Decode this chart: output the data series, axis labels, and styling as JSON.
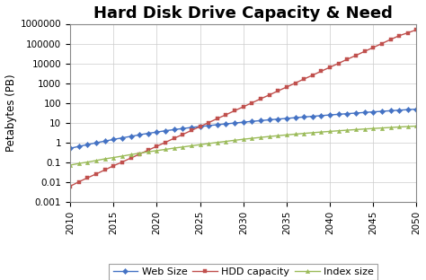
{
  "title": "Hard Disk Drive Capacity & Need",
  "ylabel": "Petabytes (PB)",
  "years": [
    2010,
    2011,
    2012,
    2013,
    2014,
    2015,
    2016,
    2017,
    2018,
    2019,
    2020,
    2021,
    2022,
    2023,
    2024,
    2025,
    2026,
    2027,
    2028,
    2029,
    2030,
    2031,
    2032,
    2033,
    2034,
    2035,
    2036,
    2037,
    2038,
    2039,
    2040,
    2041,
    2042,
    2043,
    2044,
    2045,
    2046,
    2047,
    2048,
    2049,
    2050
  ],
  "web_size": [
    0.5,
    0.62,
    0.77,
    0.95,
    1.15,
    1.4,
    1.68,
    2.0,
    2.4,
    2.85,
    3.3,
    3.85,
    4.4,
    5.0,
    5.65,
    6.3,
    7.0,
    7.8,
    8.6,
    9.5,
    10.5,
    11.5,
    12.6,
    13.8,
    15.0,
    16.3,
    17.7,
    19.2,
    20.8,
    22.5,
    24.3,
    26.2,
    28.2,
    30.3,
    32.5,
    34.8,
    37.2,
    39.7,
    42.4,
    45.1,
    48.0
  ],
  "hdd_capacity": [
    0.006,
    0.01,
    0.016,
    0.025,
    0.04,
    0.065,
    0.1,
    0.16,
    0.25,
    0.4,
    0.63,
    1.0,
    1.6,
    2.5,
    4.0,
    6.3,
    10,
    16,
    25,
    40,
    63,
    100,
    160,
    250,
    400,
    630,
    1000,
    1600,
    2500,
    4000,
    6300,
    10000,
    16000,
    25000,
    40000,
    63000,
    100000,
    160000,
    250000,
    350000,
    500000
  ],
  "index_size": [
    0.07,
    0.085,
    0.1,
    0.12,
    0.145,
    0.17,
    0.2,
    0.24,
    0.28,
    0.33,
    0.38,
    0.44,
    0.51,
    0.58,
    0.67,
    0.76,
    0.87,
    0.99,
    1.12,
    1.27,
    1.43,
    1.6,
    1.78,
    1.97,
    2.17,
    2.38,
    2.6,
    2.83,
    3.07,
    3.32,
    3.58,
    3.85,
    4.13,
    4.42,
    4.72,
    5.02,
    5.33,
    5.65,
    5.98,
    6.31,
    6.65
  ],
  "web_color": "#4472C4",
  "hdd_color": "#C0504D",
  "index_color": "#9BBB59",
  "plot_bg_color": "#FFFFFF",
  "fig_bg_color": "#FFFFFF",
  "title_fontsize": 13,
  "label_fontsize": 8.5,
  "tick_fontsize": 7.5,
  "legend_fontsize": 8,
  "ylim_min": 0.001,
  "ylim_max": 1000000,
  "xlim_min": 2010,
  "xlim_max": 2050,
  "xticks": [
    2010,
    2015,
    2020,
    2025,
    2030,
    2035,
    2040,
    2045,
    2050
  ],
  "yticks": [
    0.001,
    0.01,
    0.1,
    1,
    10,
    100,
    1000,
    10000,
    100000,
    1000000
  ],
  "ytick_labels": [
    "0.001",
    "0.01",
    "0.1",
    "1",
    "10",
    "100",
    "1000",
    "10000",
    "100000",
    "1000000"
  ]
}
